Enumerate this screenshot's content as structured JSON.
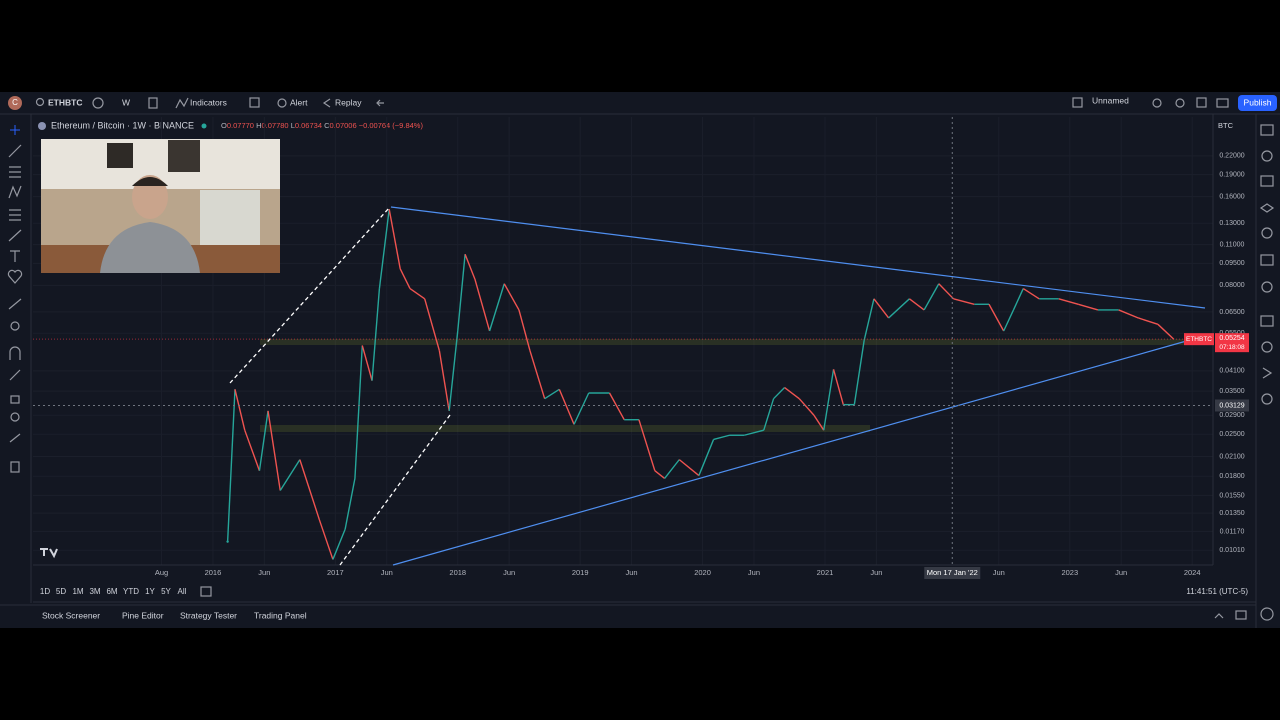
{
  "toolbar": {
    "avatar": "C",
    "symbol": "ETHBTC",
    "interval": "W",
    "indicators": "Indicators",
    "alert": "Alert",
    "replay": "Replay",
    "layout_name": "Unnamed",
    "publish": "Publish"
  },
  "legend": {
    "title": "Ethereum / Bitcoin · 1W · BINANCE",
    "ohlc": [
      {
        "key": "O",
        "value": "0.07770"
      },
      {
        "key": "H",
        "value": "0.07780"
      },
      {
        "key": "L",
        "value": "0.06734"
      },
      {
        "key": "C",
        "value": "0.07006"
      }
    ],
    "change": "−0.00764 (−9.84%)"
  },
  "chart_data": {
    "type": "line",
    "log_scale": true,
    "grid": true,
    "price_currency": "BTC",
    "colors": {
      "up": "#26a69a",
      "down": "#ef5350"
    },
    "x": [
      2016.12,
      2016.18,
      2016.26,
      2016.38,
      2016.45,
      2016.55,
      2016.71,
      2016.87,
      2016.98,
      2017.08,
      2017.16,
      2017.22,
      2017.3,
      2017.36,
      2017.44,
      2017.53,
      2017.61,
      2017.73,
      2017.85,
      2017.93,
      2018.0,
      2018.06,
      2018.14,
      2018.26,
      2018.38,
      2018.5,
      2018.59,
      2018.71,
      2018.83,
      2018.95,
      2019.07,
      2019.24,
      2019.36,
      2019.48,
      2019.61,
      2019.69,
      2019.81,
      2019.97,
      2020.09,
      2020.22,
      2020.34,
      2020.5,
      2020.58,
      2020.67,
      2020.79,
      2020.91,
      2020.99,
      2021.07,
      2021.15,
      2021.24,
      2021.32,
      2021.4,
      2021.52,
      2021.69,
      2021.81,
      2021.93,
      2022.05,
      2022.22,
      2022.34,
      2022.46,
      2022.54,
      2022.62,
      2022.75,
      2022.91,
      2023.07,
      2023.23,
      2023.4,
      2023.56,
      2023.72,
      2023.85
    ],
    "series": [
      {
        "name": "ETHBTC",
        "values": [
          0.0108,
          0.0355,
          0.0258,
          0.0188,
          0.03,
          0.0161,
          0.0205,
          0.0128,
          0.0094,
          0.0119,
          0.0177,
          0.05,
          0.038,
          0.078,
          0.145,
          0.091,
          0.078,
          0.072,
          0.048,
          0.03,
          0.056,
          0.102,
          0.084,
          0.056,
          0.081,
          0.066,
          0.048,
          0.033,
          0.0355,
          0.027,
          0.0345,
          0.0345,
          0.028,
          0.028,
          0.0188,
          0.0177,
          0.0205,
          0.0181,
          0.024,
          0.0248,
          0.0248,
          0.0258,
          0.033,
          0.036,
          0.033,
          0.029,
          0.0258,
          0.0415,
          0.0315,
          0.0315,
          0.052,
          0.072,
          0.062,
          0.072,
          0.066,
          0.081,
          0.072,
          0.069,
          0.069,
          0.056,
          0.066,
          0.078,
          0.072,
          0.072,
          0.069,
          0.066,
          0.066,
          0.062,
          0.059,
          0.0525
        ]
      }
    ],
    "xlim": [
      2014.53,
      2024.17
    ],
    "xticks": [
      {
        "value": 2015.58,
        "label": "Aug"
      },
      {
        "value": 2016,
        "label": "2016"
      },
      {
        "value": 2016.42,
        "label": "Jun"
      },
      {
        "value": 2017,
        "label": "2017"
      },
      {
        "value": 2017.42,
        "label": "Jun"
      },
      {
        "value": 2018,
        "label": "2018"
      },
      {
        "value": 2018.42,
        "label": "Jun"
      },
      {
        "value": 2019,
        "label": "2019"
      },
      {
        "value": 2019.42,
        "label": "Jun"
      },
      {
        "value": 2020,
        "label": "2020"
      },
      {
        "value": 2020.42,
        "label": "Jun"
      },
      {
        "value": 2021,
        "label": "2021"
      },
      {
        "value": 2021.42,
        "label": "Jun"
      },
      {
        "value": 2022.42,
        "label": "Jun"
      },
      {
        "value": 2023,
        "label": "2023"
      },
      {
        "value": 2023.42,
        "label": "Jun"
      },
      {
        "value": 2024,
        "label": "2024"
      }
    ],
    "ylim": [
      0.009,
      0.298
    ],
    "yticks": [
      {
        "value": 0.22,
        "label": "0.22000"
      },
      {
        "value": 0.19,
        "label": "0.19000"
      },
      {
        "value": 0.16,
        "label": "0.16000"
      },
      {
        "value": 0.13,
        "label": "0.13000"
      },
      {
        "value": 0.11,
        "label": "0.11000"
      },
      {
        "value": 0.095,
        "label": "0.09500"
      },
      {
        "value": 0.08,
        "label": "0.08000"
      },
      {
        "value": 0.065,
        "label": "0.06500"
      },
      {
        "value": 0.055,
        "label": "0.05500"
      },
      {
        "value": 0.041,
        "label": "0.04100"
      },
      {
        "value": 0.035,
        "label": "0.03500"
      },
      {
        "value": 0.029,
        "label": "0.02900"
      },
      {
        "value": 0.025,
        "label": "0.02500"
      },
      {
        "value": 0.021,
        "label": "0.02100"
      },
      {
        "value": 0.018,
        "label": "0.01800"
      },
      {
        "value": 0.0155,
        "label": "0.01550"
      },
      {
        "value": 0.0135,
        "label": "0.01350"
      },
      {
        "value": 0.0117,
        "label": "0.01170"
      },
      {
        "value": 0.0101,
        "label": "0.01010"
      }
    ],
    "last_price": 0.05254,
    "symbol_label": "ETHBTC",
    "countdown": "07:18:08",
    "crosshair": {
      "price": 0.03129,
      "date": {
        "value": 2022.04,
        "label": "Mon 17 Jan '22"
      }
    }
  },
  "bottom": {
    "timeframes": [
      "1D",
      "5D",
      "1M",
      "3M",
      "6M",
      "YTD",
      "1Y",
      "5Y",
      "All"
    ],
    "clock": "11:41:51 (UTC-5)",
    "panels": [
      "Stock Screener",
      "Pine Editor",
      "Strategy Tester",
      "Trading Panel"
    ]
  }
}
